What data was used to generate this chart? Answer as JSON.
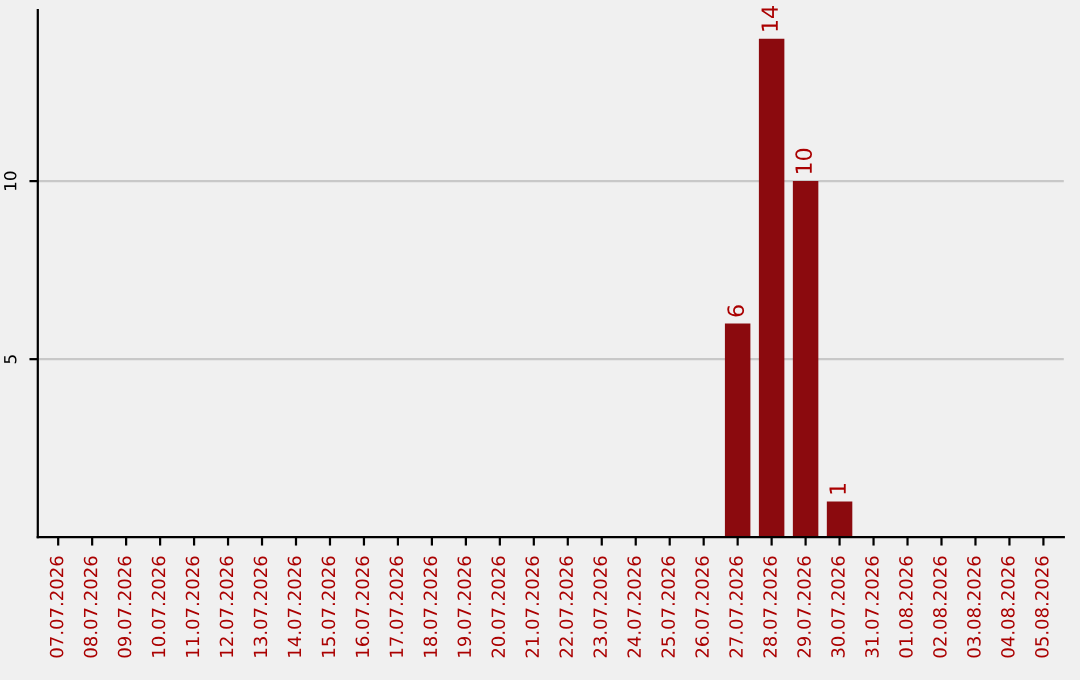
{
  "chart_data": {
    "type": "bar",
    "categories": [
      "07.07.2026",
      "08.07.2026",
      "09.07.2026",
      "10.07.2026",
      "11.07.2026",
      "12.07.2026",
      "13.07.2026",
      "14.07.2026",
      "15.07.2026",
      "16.07.2026",
      "17.07.2026",
      "18.07.2026",
      "19.07.2026",
      "20.07.2026",
      "21.07.2026",
      "22.07.2026",
      "23.07.2026",
      "24.07.2026",
      "25.07.2026",
      "26.07.2026",
      "27.07.2026",
      "28.07.2026",
      "29.07.2026",
      "30.07.2026",
      "31.07.2026",
      "01.08.2026",
      "02.08.2026",
      "03.08.2026",
      "04.08.2026",
      "05.08.2026"
    ],
    "values": [
      0,
      0,
      0,
      0,
      0,
      0,
      0,
      0,
      0,
      0,
      0,
      0,
      0,
      0,
      0,
      0,
      0,
      0,
      0,
      0,
      6,
      14,
      10,
      1,
      0,
      0,
      0,
      0,
      0,
      0
    ],
    "value_labels": [
      null,
      null,
      null,
      null,
      null,
      null,
      null,
      null,
      null,
      null,
      null,
      null,
      null,
      null,
      null,
      null,
      null,
      null,
      null,
      null,
      "6",
      "14",
      "10",
      "1",
      null,
      null,
      null,
      null,
      null,
      null
    ],
    "color": "#8b0a0e",
    "ylim": [
      0,
      14.8
    ],
    "yticks": [
      5,
      10
    ],
    "grid": "y",
    "legend": false
  }
}
